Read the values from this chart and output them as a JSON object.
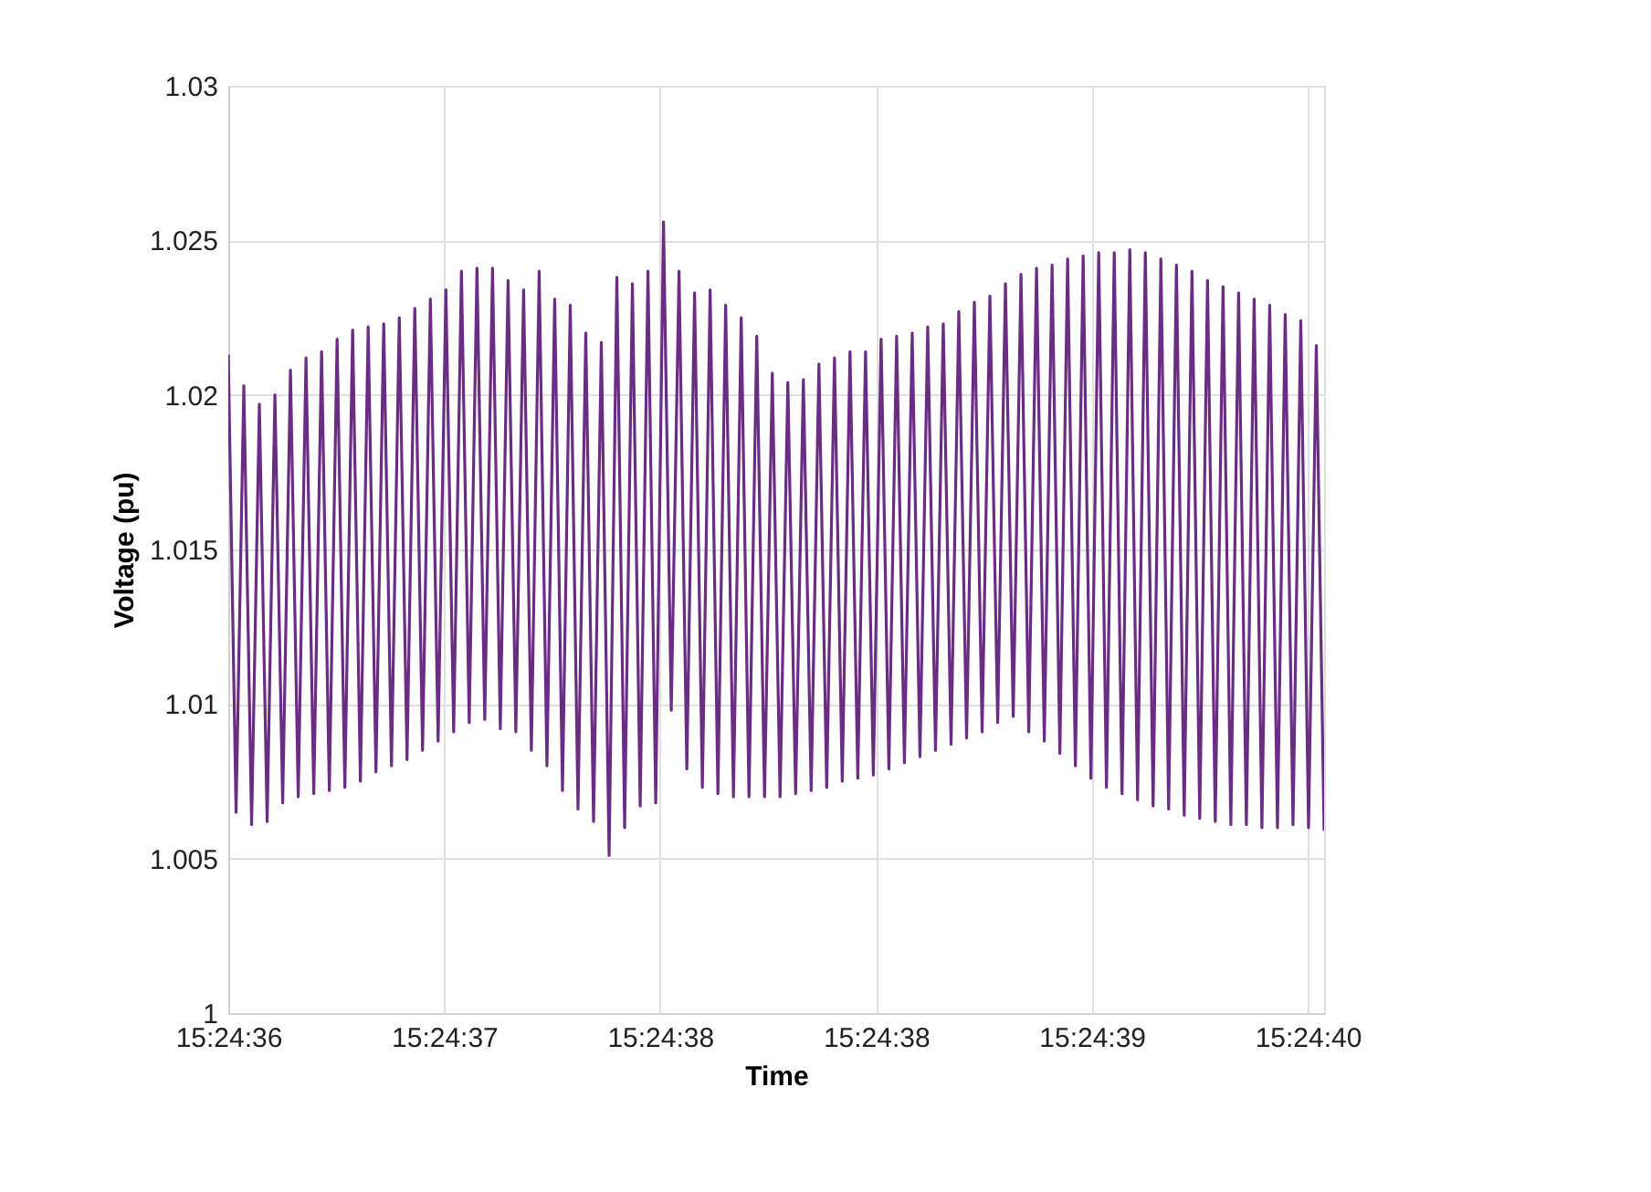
{
  "chart_data": {
    "type": "line",
    "xlabel": "Time",
    "ylabel": "Voltage (pu)",
    "x": [
      15.41,
      15.410008,
      15.410016,
      15.410024,
      15.410032,
      15.41004,
      15.410048,
      15.410056,
      15.410064,
      15.410072,
      15.41008,
      15.410088,
      15.410096,
      15.410104,
      15.410112,
      15.41012,
      15.410128,
      15.410136,
      15.410144,
      15.410152,
      15.41016,
      15.410168,
      15.410176,
      15.410184,
      15.410192,
      15.4102,
      15.410208,
      15.410216,
      15.410224,
      15.410232,
      15.41024,
      15.410248,
      15.410256,
      15.410264,
      15.410272,
      15.41028,
      15.410288,
      15.410296,
      15.410304,
      15.410312,
      15.41032,
      15.410328,
      15.410336,
      15.410344,
      15.410352,
      15.41036,
      15.410368,
      15.410376,
      15.410384,
      15.410392,
      15.4104,
      15.410408,
      15.410416,
      15.410424,
      15.410432,
      15.41044,
      15.410448,
      15.410456,
      15.410464,
      15.410472,
      15.41048,
      15.410488,
      15.410496,
      15.410504,
      15.410512,
      15.41052,
      15.410528,
      15.410536,
      15.410544,
      15.410552,
      15.41056,
      15.410568,
      15.410576,
      15.410584,
      15.410592,
      15.4106,
      15.410608,
      15.410616,
      15.410624,
      15.410632,
      15.41064,
      15.410648,
      15.410656,
      15.410664,
      15.410672,
      15.41068,
      15.410688,
      15.410696,
      15.410704,
      15.410712,
      15.41072,
      15.410728,
      15.410736,
      15.410744,
      15.410752,
      15.41076,
      15.410768,
      15.410776,
      15.410784,
      15.410792,
      15.4108,
      15.410808,
      15.410816,
      15.410824,
      15.410832,
      15.41084,
      15.410848,
      15.410856,
      15.410864,
      15.410872,
      15.41088,
      15.410888,
      15.410896,
      15.410904,
      15.410912,
      15.41092,
      15.410928,
      15.410936,
      15.410944,
      15.410952,
      15.41096,
      15.410968,
      15.410976,
      15.410984,
      15.410992,
      15.411,
      15.411008,
      15.411016,
      15.411024,
      15.411032,
      15.41104,
      15.411048,
      15.411056,
      15.411064,
      15.411072,
      15.41108,
      15.411088,
      15.411096,
      15.411104,
      15.411112,
      15.41112,
      15.411128
    ],
    "series": [
      {
        "color": "#6b2d84",
        "values": [
          1.0213,
          1.0065,
          1.0203,
          1.0061,
          1.0197,
          1.0062,
          1.02,
          1.0068,
          1.0208,
          1.007,
          1.0212,
          1.0071,
          1.0214,
          1.0072,
          1.0218,
          1.0073,
          1.0221,
          1.0075,
          1.0222,
          1.0078,
          1.0223,
          1.008,
          1.0225,
          1.0082,
          1.0228,
          1.0085,
          1.0231,
          1.0088,
          1.0234,
          1.0091,
          1.024,
          1.0094,
          1.0241,
          1.0095,
          1.0241,
          1.0092,
          1.0237,
          1.0091,
          1.0234,
          1.0085,
          1.024,
          1.008,
          1.0231,
          1.0072,
          1.0229,
          1.0066,
          1.022,
          1.0062,
          1.0217,
          1.0051,
          1.0238,
          1.006,
          1.0236,
          1.0067,
          1.024,
          1.0068,
          1.0256,
          1.0098,
          1.024,
          1.0079,
          1.0233,
          1.0073,
          1.0234,
          1.0071,
          1.0229,
          1.007,
          1.0225,
          1.007,
          1.0219,
          1.007,
          1.0207,
          1.007,
          1.0204,
          1.0071,
          1.0205,
          1.0072,
          1.021,
          1.0073,
          1.0212,
          1.0075,
          1.0214,
          1.0076,
          1.0214,
          1.0077,
          1.0218,
          1.0079,
          1.0219,
          1.0081,
          1.022,
          1.0083,
          1.0222,
          1.0085,
          1.0223,
          1.0087,
          1.0227,
          1.0089,
          1.023,
          1.0091,
          1.0232,
          1.0094,
          1.0236,
          1.0096,
          1.0239,
          1.0091,
          1.0241,
          1.0088,
          1.0242,
          1.0084,
          1.0244,
          1.008,
          1.0245,
          1.0076,
          1.0246,
          1.0073,
          1.0246,
          1.0071,
          1.0247,
          1.0069,
          1.0246,
          1.0067,
          1.0244,
          1.0066,
          1.0242,
          1.0064,
          1.024,
          1.0063,
          1.0237,
          1.0062,
          1.0235,
          1.0061,
          1.0233,
          1.0061,
          1.0231,
          1.006,
          1.0229,
          1.006,
          1.0226,
          1.0061,
          1.0224,
          1.006,
          1.0216,
          1.0059
        ]
      }
    ],
    "xlim": [
      15.41,
      15.411128
    ],
    "xticks": [
      {
        "value": 15.41,
        "label": "15:24:36"
      },
      {
        "value": 15.4102222,
        "label": "15:24:37"
      },
      {
        "value": 15.4104444,
        "label": "15:24:38"
      },
      {
        "value": 15.4106667,
        "label": "15:24:38"
      },
      {
        "value": 15.4108889,
        "label": "15:24:39"
      },
      {
        "value": 15.4111111,
        "label": "15:24:40"
      }
    ],
    "ylim": [
      1,
      1.03
    ],
    "yticks": [
      1,
      1.005,
      1.01,
      1.015,
      1.02,
      1.025,
      1.03
    ],
    "grid": true,
    "marker": "none",
    "line_style": "solid"
  }
}
